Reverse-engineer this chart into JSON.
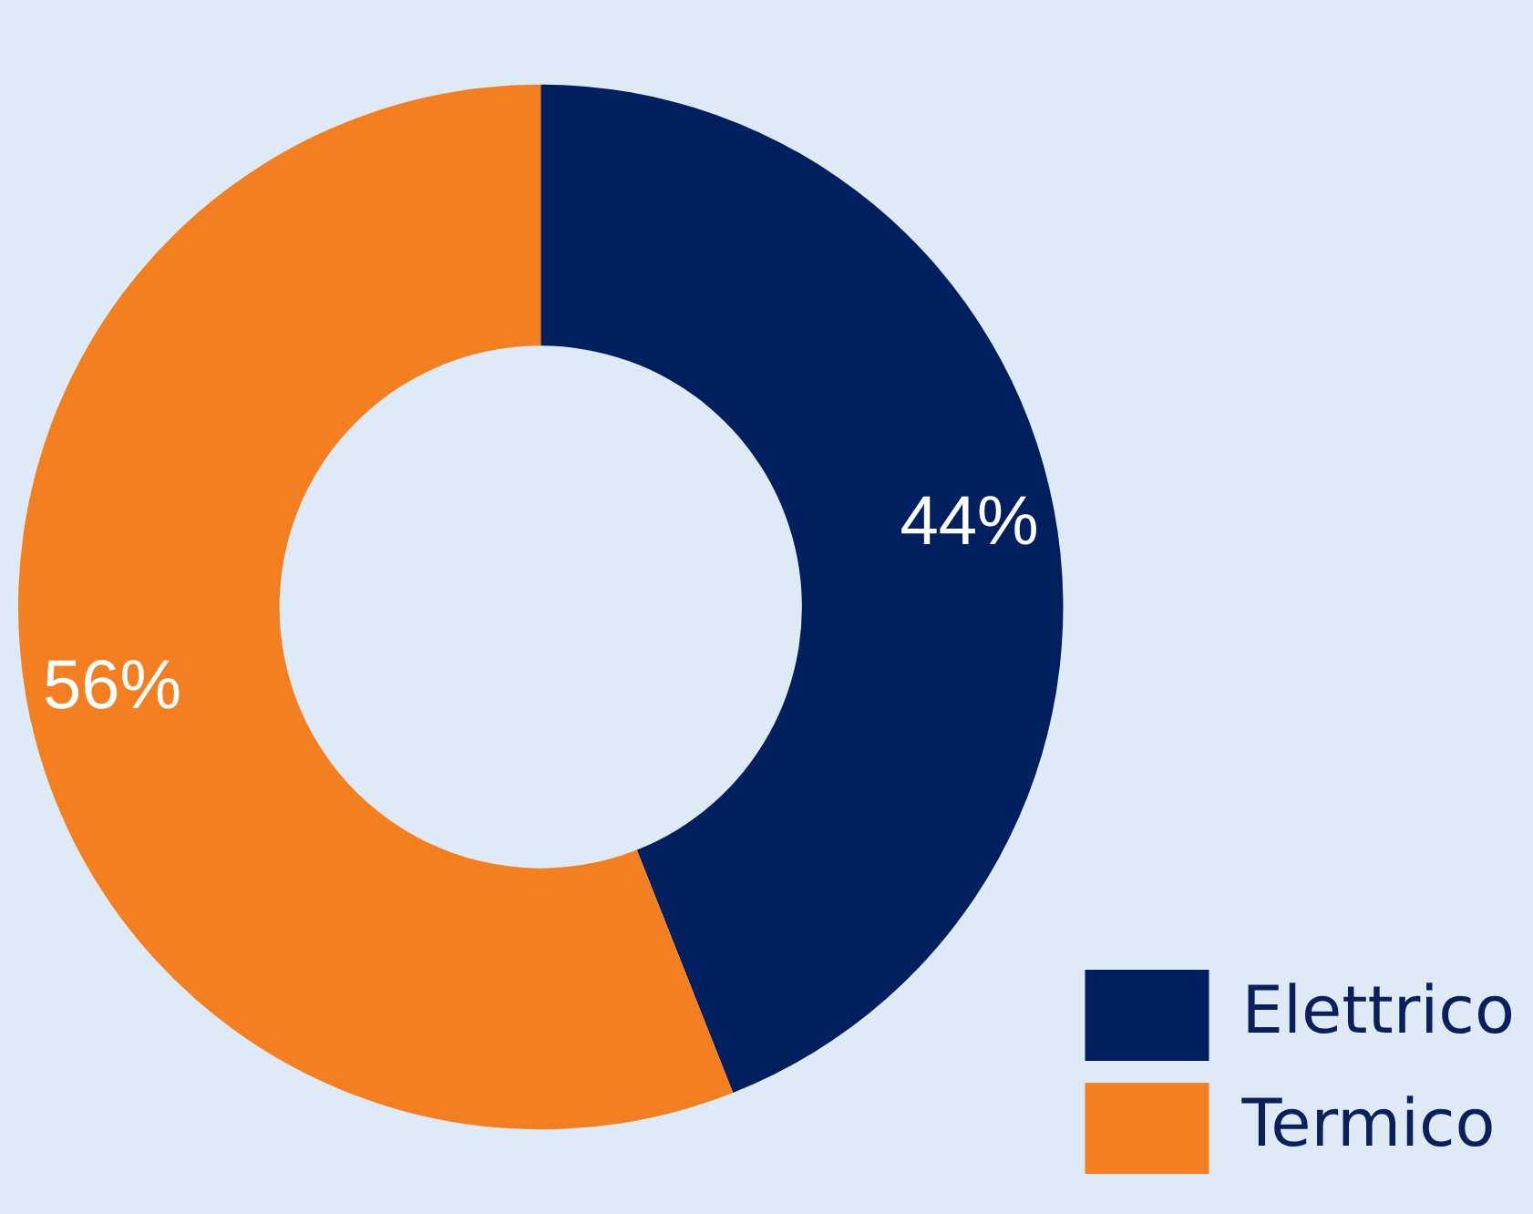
{
  "chart_data": {
    "type": "donut",
    "categories": [
      "Elettrico",
      "Termico"
    ],
    "values": [
      44,
      56
    ],
    "colors": [
      "#001f5f",
      "#f47f20"
    ],
    "value_labels": [
      "44%",
      "56%"
    ],
    "legend": "bottom right"
  }
}
